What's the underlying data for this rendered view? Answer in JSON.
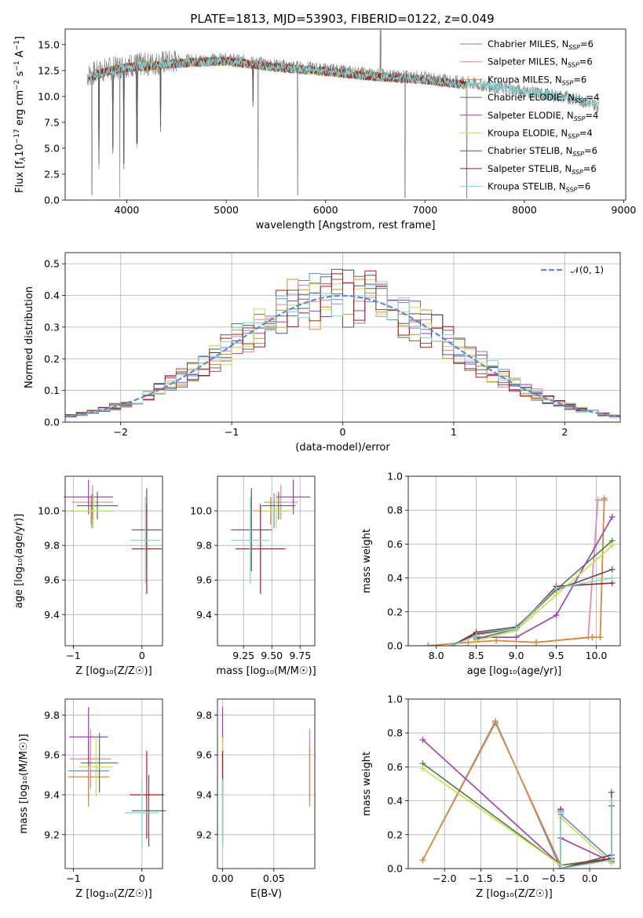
{
  "figure": {
    "title": "PLATE=1813, MJD=53903, FIBERID=0122, z=0.049"
  },
  "colors": {
    "Chabrier MILES": "#6688cc",
    "Salpeter MILES": "#e57fa9",
    "Kroupa MILES": "#e08a2a",
    "Chabrier ELODIE": "#4a7a4a",
    "Salpeter ELODIE": "#a03cb4",
    "Kroupa ELODIE": "#c8e040",
    "Chabrier STELIB": "#555555",
    "Salpeter STELIB": "#b01818",
    "Kroupa STELIB": "#7ad8d8"
  },
  "chart_data": [
    {
      "panel": "spectrum",
      "type": "line",
      "title": "PLATE=1813, MJD=53903, FIBERID=0122, z=0.049",
      "xlabel": "wavelength [Angstrom, rest frame]",
      "ylabel": "Flux [fλ10⁻¹⁷ erg cm⁻² s⁻¹ A⁻¹]",
      "xlim": [
        3380,
        9020
      ],
      "ylim": [
        0,
        16.5
      ],
      "xticks": [
        "4000",
        "5000",
        "6000",
        "7000",
        "8000",
        "9000"
      ],
      "yticks": [
        "0.0",
        "2.5",
        "5.0",
        "7.5",
        "10.0",
        "12.5",
        "15.0"
      ],
      "grid": false,
      "legend_position": "top-right",
      "data_series": {
        "name": "",
        "color": "#888888",
        "x_range": [
          3600,
          8750
        ]
      },
      "model_series": [
        {
          "name": "Chabrier MILES, N",
          "sub": "SSP",
          "suffix": "=6"
        },
        {
          "name": "Salpeter MILES, N",
          "sub": "SSP",
          "suffix": "=6"
        },
        {
          "name": "Kroupa MILES, N",
          "sub": "SSP",
          "suffix": "=6"
        },
        {
          "name": "Chabrier ELODIE, N",
          "sub": "SSP",
          "suffix": "=4"
        },
        {
          "name": "Salpeter ELODIE, N",
          "sub": "SSP",
          "suffix": "=4"
        },
        {
          "name": "Kroupa ELODIE, N",
          "sub": "SSP",
          "suffix": "=4"
        },
        {
          "name": "Chabrier STELIB, N",
          "sub": "SSP",
          "suffix": "=6"
        },
        {
          "name": "Salpeter STELIB, N",
          "sub": "SSP",
          "suffix": "=6"
        },
        {
          "name": "Kroupa STELIB, N",
          "sub": "SSP",
          "suffix": "=6"
        }
      ],
      "continuum_points": [
        [
          3600,
          12.0
        ],
        [
          3800,
          12.6
        ],
        [
          4000,
          13.0
        ],
        [
          4200,
          13.1
        ],
        [
          4500,
          13.4
        ],
        [
          5000,
          13.6
        ],
        [
          5500,
          13.0
        ],
        [
          6000,
          12.6
        ],
        [
          6500,
          12.1
        ],
        [
          7000,
          11.8
        ],
        [
          7500,
          11.2
        ],
        [
          8000,
          10.5
        ],
        [
          8500,
          9.8
        ],
        [
          8750,
          9.1
        ]
      ],
      "absorption_features": [
        [
          3650,
          0.5
        ],
        [
          3720,
          3.0
        ],
        [
          3860,
          4.5
        ],
        [
          3930,
          0.2
        ],
        [
          3970,
          3.0
        ],
        [
          4101,
          5.0
        ],
        [
          4340,
          6.6
        ],
        [
          5270,
          9.0
        ],
        [
          5320,
          0.3
        ],
        [
          5720,
          0.5
        ],
        [
          6800,
          0.2
        ],
        [
          7420,
          0.2
        ]
      ]
    },
    {
      "panel": "residual-histogram",
      "type": "bar",
      "xlabel": "(data-model)/error",
      "ylabel": "Normed distribution",
      "xlim": [
        -2.5,
        2.5
      ],
      "ylim": [
        0,
        0.535
      ],
      "xticks": [
        "−2",
        "−1",
        "0",
        "1",
        "2"
      ],
      "yticks": [
        "0.0",
        "0.1",
        "0.2",
        "0.3",
        "0.4",
        "0.5"
      ],
      "grid": true,
      "legend_position": "top-right",
      "reference_curve": {
        "name": "𝒩(0, 1)",
        "color": "#6688cc",
        "style": "dashed"
      },
      "bin_width": 0.1
    },
    {
      "panel": "age-vs-Z",
      "type": "scatter",
      "xlabel": "Z [log₁₀(Z/Z☉)]",
      "ylabel": "age  [log₁₀(age/yr)]",
      "xlim": [
        -1.12,
        0.3
      ],
      "ylim": [
        9.22,
        10.2
      ],
      "xticks": [
        "−1",
        "0"
      ],
      "yticks": [
        "9.4",
        "9.6",
        "9.8",
        "10.0"
      ],
      "grid": true,
      "points": [
        {
          "model": "Chabrier MILES",
          "x": -0.73,
          "xerr": 0.3,
          "y": 10.0,
          "yerr": 0.1
        },
        {
          "model": "Salpeter MILES",
          "x": -0.72,
          "xerr": 0.3,
          "y": 10.05,
          "yerr": 0.1
        },
        {
          "model": "Kroupa MILES",
          "x": -0.74,
          "xerr": 0.3,
          "y": 10.0,
          "yerr": 0.08
        },
        {
          "model": "Chabrier ELODIE",
          "x": -0.65,
          "xerr": 0.3,
          "y": 10.03,
          "yerr": 0.08
        },
        {
          "model": "Salpeter ELODIE",
          "x": -0.78,
          "xerr": 0.36,
          "y": 10.08,
          "yerr": 0.1
        },
        {
          "model": "Kroupa ELODIE",
          "x": -0.71,
          "xerr": 0.3,
          "y": 10.0,
          "yerr": 0.1
        },
        {
          "model": "Chabrier STELIB",
          "x": 0.07,
          "xerr": 0.22,
          "y": 9.89,
          "yerr": 0.24
        },
        {
          "model": "Salpeter STELIB",
          "x": 0.07,
          "xerr": 0.22,
          "y": 9.78,
          "yerr": 0.26
        },
        {
          "model": "Kroupa STELIB",
          "x": 0.05,
          "xerr": 0.22,
          "y": 9.83,
          "yerr": 0.25
        }
      ]
    },
    {
      "panel": "age-vs-mass",
      "type": "scatter",
      "xlabel": "mass [log₁₀(M/M☉)]",
      "ylabel": "",
      "xlim": [
        9.02,
        9.88
      ],
      "ylim": [
        9.22,
        10.2
      ],
      "xticks": [
        "9.25",
        "9.50",
        "9.75"
      ],
      "yticks": [
        "9.4",
        "9.6",
        "9.8",
        "10.0"
      ],
      "grid": true,
      "points": [
        {
          "model": "Chabrier MILES",
          "x": 9.52,
          "xerr": 0.15,
          "y": 10.0,
          "yerr": 0.1
        },
        {
          "model": "Salpeter MILES",
          "x": 9.58,
          "xerr": 0.15,
          "y": 10.05,
          "yerr": 0.1
        },
        {
          "model": "Kroupa MILES",
          "x": 9.49,
          "xerr": 0.15,
          "y": 10.0,
          "yerr": 0.08
        },
        {
          "model": "Chabrier ELODIE",
          "x": 9.56,
          "xerr": 0.15,
          "y": 10.03,
          "yerr": 0.08
        },
        {
          "model": "Salpeter ELODIE",
          "x": 9.69,
          "xerr": 0.15,
          "y": 10.08,
          "yerr": 0.1
        },
        {
          "model": "Kroupa ELODIE",
          "x": 9.54,
          "xerr": 0.15,
          "y": 10.0,
          "yerr": 0.1
        },
        {
          "model": "Chabrier STELIB",
          "x": 9.32,
          "xerr": 0.18,
          "y": 9.89,
          "yerr": 0.24
        },
        {
          "model": "Salpeter STELIB",
          "x": 9.4,
          "xerr": 0.22,
          "y": 9.78,
          "yerr": 0.26
        },
        {
          "model": "Kroupa STELIB",
          "x": 9.31,
          "xerr": 0.17,
          "y": 9.83,
          "yerr": 0.25
        }
      ]
    },
    {
      "panel": "mass-weight-vs-age",
      "type": "line",
      "xlabel": "age  [log₁₀(age/yr)]",
      "ylabel": "mass weight",
      "xlim": [
        7.65,
        10.3
      ],
      "ylim": [
        0,
        1.0
      ],
      "xticks": [
        "8.0",
        "8.5",
        "9.0",
        "9.5",
        "10.0"
      ],
      "yticks": [
        "0.0",
        "0.2",
        "0.4",
        "0.6",
        "0.8",
        "1.0"
      ],
      "grid": true,
      "series": [
        {
          "model": "Chabrier MILES",
          "x": [
            7.9,
            8.4,
            8.75,
            9.25,
            9.95,
            10.05,
            10.1
          ],
          "y": [
            0.0,
            0.02,
            0.03,
            0.02,
            0.05,
            0.05,
            0.87
          ]
        },
        {
          "model": "Salpeter MILES",
          "x": [
            7.9,
            8.4,
            8.75,
            9.25,
            9.9,
            10.02,
            10.1
          ],
          "y": [
            0.0,
            0.02,
            0.03,
            0.02,
            0.05,
            0.86,
            0.86
          ]
        },
        {
          "model": "Kroupa MILES",
          "x": [
            7.9,
            8.4,
            8.75,
            9.25,
            9.95,
            10.05,
            10.1
          ],
          "y": [
            0.0,
            0.02,
            0.03,
            0.02,
            0.05,
            0.05,
            0.86
          ]
        },
        {
          "model": "Chabrier ELODIE",
          "x": [
            8.5,
            9.0,
            9.5,
            10.2
          ],
          "y": [
            0.04,
            0.1,
            0.33,
            0.62
          ]
        },
        {
          "model": "Salpeter ELODIE",
          "x": [
            8.5,
            9.0,
            9.5,
            10.2
          ],
          "y": [
            0.05,
            0.05,
            0.18,
            0.76
          ]
        },
        {
          "model": "Kroupa ELODIE",
          "x": [
            8.5,
            9.0,
            9.5,
            10.2
          ],
          "y": [
            0.03,
            0.09,
            0.3,
            0.59
          ]
        },
        {
          "model": "Chabrier STELIB",
          "x": [
            8.2,
            8.5,
            9.0,
            9.5,
            10.2
          ],
          "y": [
            0.0,
            0.08,
            0.11,
            0.33,
            0.45
          ]
        },
        {
          "model": "Salpeter STELIB",
          "x": [
            8.2,
            8.5,
            9.0,
            9.5,
            10.2
          ],
          "y": [
            0.0,
            0.07,
            0.1,
            0.35,
            0.37
          ]
        },
        {
          "model": "Kroupa STELIB",
          "x": [
            8.2,
            8.5,
            9.0,
            9.5,
            10.2
          ],
          "y": [
            0.0,
            0.06,
            0.1,
            0.34,
            0.4
          ]
        }
      ]
    },
    {
      "panel": "mass-vs-Z",
      "type": "scatter",
      "xlabel": "Z [log₁₀(Z/Z☉)]",
      "ylabel": "mass [log₁₀(M/M☉)]",
      "xlim": [
        -1.12,
        0.3
      ],
      "ylim": [
        9.03,
        9.88
      ],
      "xticks": [
        "−1",
        "0"
      ],
      "yticks": [
        "9.2",
        "9.4",
        "9.6",
        "9.8"
      ],
      "grid": true,
      "points": [
        {
          "model": "Chabrier MILES",
          "x": -0.78,
          "xerr": 0.3,
          "y": 9.52,
          "yerr": 0.15
        },
        {
          "model": "Salpeter MILES",
          "x": -0.75,
          "xerr": 0.3,
          "y": 9.58,
          "yerr": 0.15
        },
        {
          "model": "Kroupa MILES",
          "x": -0.78,
          "xerr": 0.3,
          "y": 9.49,
          "yerr": 0.15
        },
        {
          "model": "Chabrier ELODIE",
          "x": -0.62,
          "xerr": 0.27,
          "y": 9.56,
          "yerr": 0.15
        },
        {
          "model": "Salpeter ELODIE",
          "x": -0.78,
          "xerr": 0.28,
          "y": 9.69,
          "yerr": 0.15
        },
        {
          "model": "Kroupa ELODIE",
          "x": -0.67,
          "xerr": 0.25,
          "y": 9.54,
          "yerr": 0.15
        },
        {
          "model": "Chabrier STELIB",
          "x": 0.1,
          "xerr": 0.25,
          "y": 9.32,
          "yerr": 0.18
        },
        {
          "model": "Salpeter STELIB",
          "x": 0.07,
          "xerr": 0.25,
          "y": 9.4,
          "yerr": 0.22
        },
        {
          "model": "Kroupa STELIB",
          "x": 0.0,
          "xerr": 0.25,
          "y": 9.31,
          "yerr": 0.17
        }
      ]
    },
    {
      "panel": "mass-vs-EBV",
      "type": "scatter",
      "xlabel": "E(B-V)",
      "ylabel": "",
      "xlim": [
        -0.005,
        0.09
      ],
      "ylim": [
        9.03,
        9.88
      ],
      "xticks": [
        "0.00",
        "0.05"
      ],
      "yticks": [
        "9.2",
        "9.4",
        "9.6",
        "9.8"
      ],
      "grid": true,
      "points": [
        {
          "model": "Chabrier MILES",
          "x": 0.085,
          "y": 9.52,
          "yerr": 0.15
        },
        {
          "model": "Salpeter MILES",
          "x": 0.085,
          "y": 9.58,
          "yerr": 0.15
        },
        {
          "model": "Kroupa MILES",
          "x": 0.085,
          "y": 9.49,
          "yerr": 0.15
        },
        {
          "model": "Chabrier ELODIE",
          "x": 0.0,
          "y": 9.56,
          "yerr": 0.15
        },
        {
          "model": "Salpeter ELODIE",
          "x": 0.0,
          "y": 9.69,
          "yerr": 0.15
        },
        {
          "model": "Kroupa ELODIE",
          "x": 0.0,
          "y": 9.54,
          "yerr": 0.15
        },
        {
          "model": "Chabrier STELIB",
          "x": 0.0,
          "y": 9.32,
          "yerr": 0.18
        },
        {
          "model": "Salpeter STELIB",
          "x": 0.0,
          "y": 9.4,
          "yerr": 0.22
        },
        {
          "model": "Kroupa STELIB",
          "x": 0.0,
          "y": 9.31,
          "yerr": 0.17
        }
      ]
    },
    {
      "panel": "mass-weight-vs-Z",
      "type": "line",
      "xlabel": "Z [log₁₀(Z/Z☉)]",
      "ylabel": "mass weight",
      "xlim": [
        -2.5,
        0.42
      ],
      "ylim": [
        0,
        1.0
      ],
      "xticks": [
        "−2.0",
        "−1.5",
        "−1.0",
        "−0.5",
        "0.0"
      ],
      "yticks": [
        "0.0",
        "0.2",
        "0.4",
        "0.6",
        "0.8",
        "1.0"
      ],
      "grid": true,
      "series": [
        {
          "model": "Chabrier MILES",
          "x": [
            -2.3,
            -1.3,
            -0.4,
            -0.4,
            0.3
          ],
          "y": [
            0.05,
            0.87,
            0.0,
            0.32,
            0.05
          ]
        },
        {
          "model": "Salpeter MILES",
          "x": [
            -2.3,
            -1.3,
            -0.4,
            0.3
          ],
          "y": [
            0.05,
            0.86,
            0.02,
            0.05
          ]
        },
        {
          "model": "Kroupa MILES",
          "x": [
            -2.3,
            -1.3,
            -0.4,
            0.3
          ],
          "y": [
            0.05,
            0.86,
            0.02,
            0.05
          ]
        },
        {
          "model": "Chabrier ELODIE",
          "x": [
            -2.3,
            -0.4,
            0.3
          ],
          "y": [
            0.62,
            0.02,
            0.06
          ]
        },
        {
          "model": "Salpeter ELODIE",
          "x": [
            -2.3,
            -0.4,
            -0.4,
            0.3
          ],
          "y": [
            0.76,
            0.02,
            0.18,
            0.04
          ]
        },
        {
          "model": "Kroupa ELODIE",
          "x": [
            -2.3,
            -0.4,
            -0.4,
            0.3
          ],
          "y": [
            0.59,
            0.02,
            0.3,
            0.03
          ]
        },
        {
          "model": "Chabrier STELIB",
          "x": [
            -0.4,
            -0.4,
            0.3,
            0.3
          ],
          "y": [
            0.34,
            0.0,
            0.08,
            0.45
          ]
        },
        {
          "model": "Salpeter STELIB",
          "x": [
            -0.4,
            -0.4,
            0.3,
            0.3
          ],
          "y": [
            0.35,
            0.0,
            0.06,
            0.37
          ]
        },
        {
          "model": "Kroupa STELIB",
          "x": [
            -0.4,
            -0.4,
            0.3,
            0.3
          ],
          "y": [
            0.33,
            0.0,
            0.05,
            0.4
          ]
        }
      ]
    }
  ]
}
